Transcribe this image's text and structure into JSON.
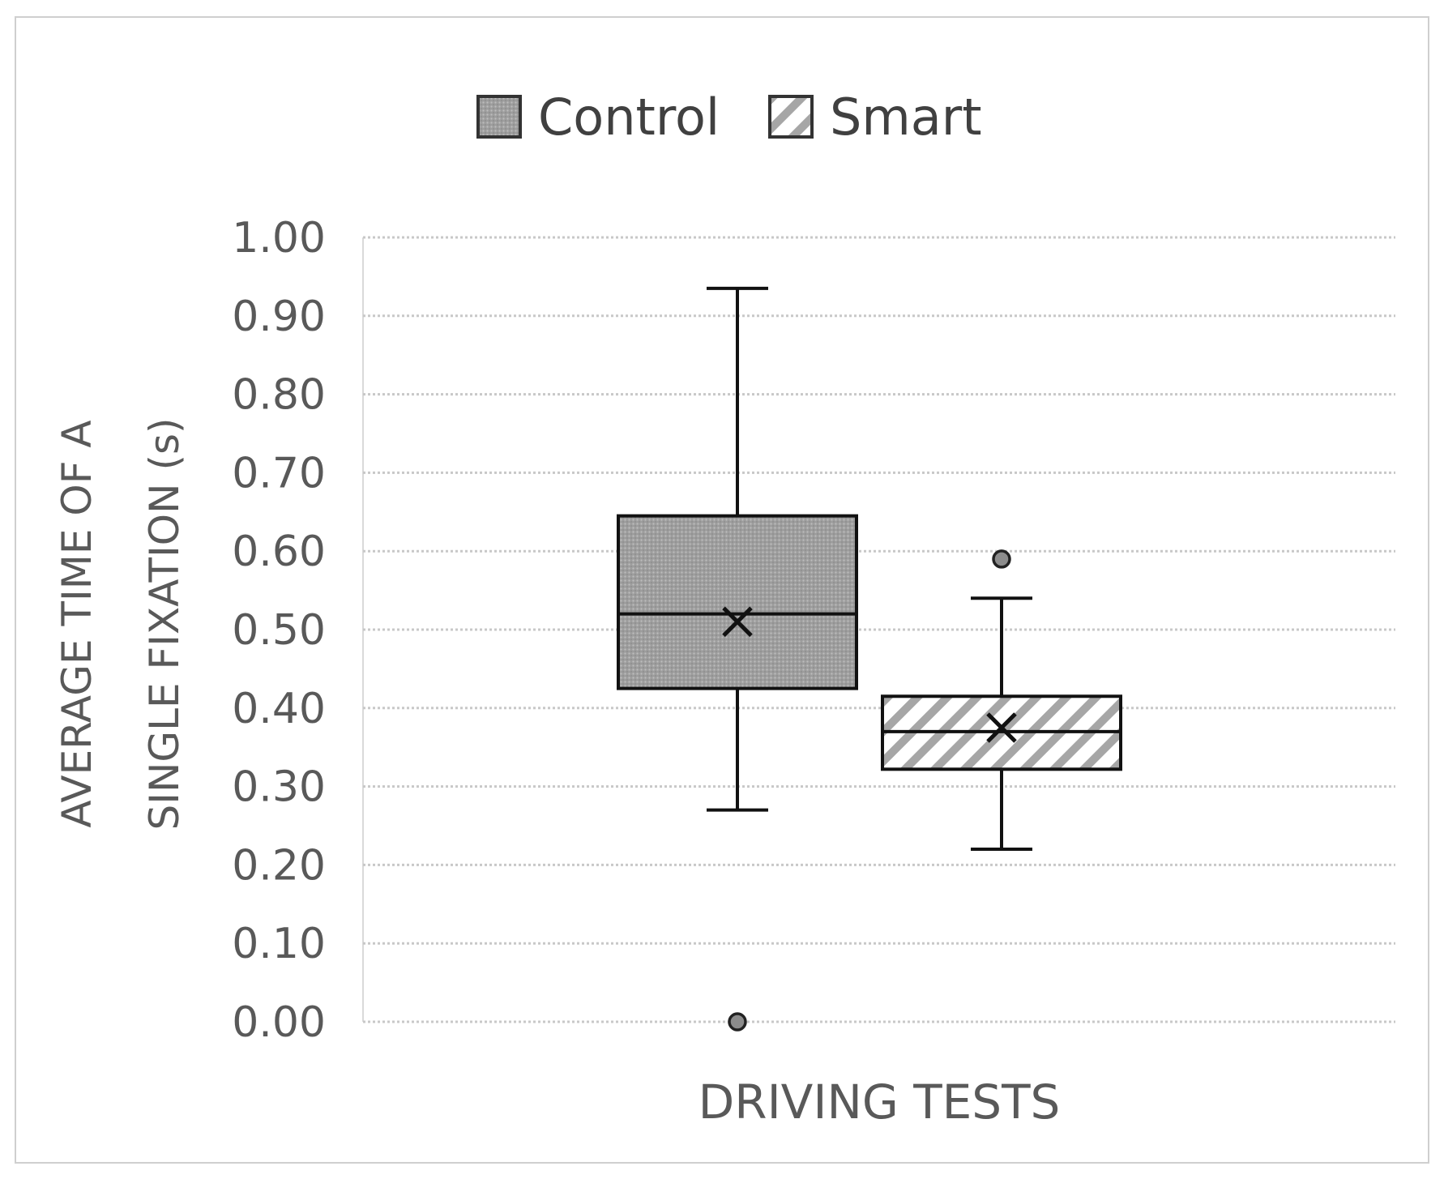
{
  "chart_data": {
    "type": "boxplot",
    "title": "",
    "xlabel": "DRIVING TESTS",
    "ylabel_lines": [
      "AVERAGE TIME OF A",
      "SINGLE FIXATION (s)"
    ],
    "ylim": [
      0,
      1
    ],
    "yticks": [
      "0.00",
      "0.10",
      "0.20",
      "0.30",
      "0.40",
      "0.50",
      "0.60",
      "0.70",
      "0.80",
      "0.90",
      "1.00"
    ],
    "ytick_values": [
      0,
      0.1,
      0.2,
      0.3,
      0.4,
      0.5,
      0.6,
      0.7,
      0.8,
      0.9,
      1.0
    ],
    "grid": "horizontal dotted",
    "legend_position": "top-center",
    "series": [
      {
        "name": "Control",
        "fill": "gray-dotted",
        "color": "#a9a9a9",
        "whisker_low": 0.27,
        "q1": 0.425,
        "median": 0.52,
        "q3": 0.645,
        "whisker_high": 0.935,
        "mean": 0.51,
        "outliers": [
          0.0
        ]
      },
      {
        "name": "Smart",
        "fill": "diagonal-hatch",
        "color": "#a0a0a0",
        "whisker_low": 0.22,
        "q1": 0.322,
        "median": 0.37,
        "q3": 0.415,
        "whisker_high": 0.54,
        "mean": 0.375,
        "outliers": [
          0.59
        ]
      }
    ]
  }
}
